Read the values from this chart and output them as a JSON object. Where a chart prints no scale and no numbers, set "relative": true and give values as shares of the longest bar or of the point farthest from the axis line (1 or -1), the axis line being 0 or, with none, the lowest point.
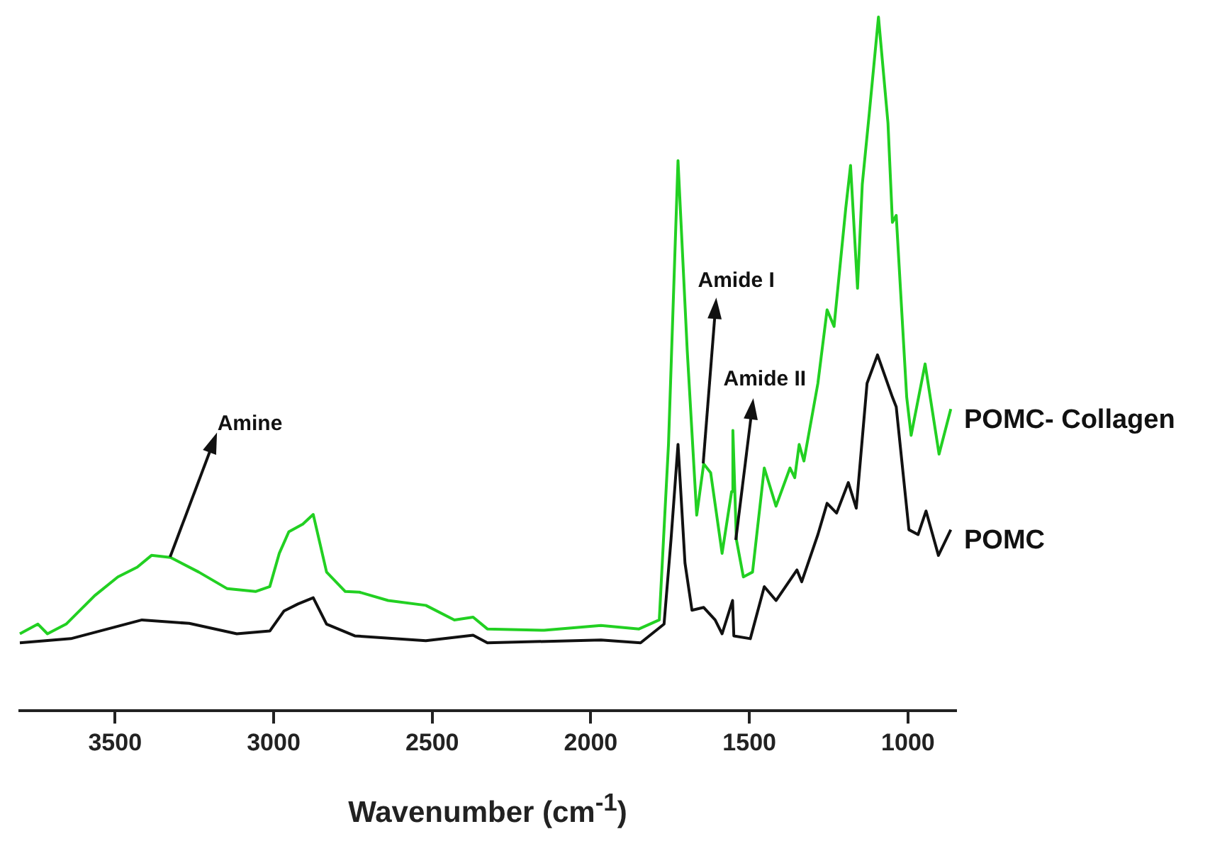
{
  "chart_data": {
    "type": "line",
    "relative": true,
    "xlabel": "Wavenumber (cm$^{-1}$)",
    "xlim": [
      3800,
      850
    ],
    "xticks": [
      3500,
      3000,
      2500,
      2000,
      1500,
      1000
    ],
    "grid": false,
    "legend": false,
    "marker": "none",
    "line_style": "solid",
    "annotations": [
      {
        "text": "Amine",
        "x": 3325,
        "y": 0.221
      },
      {
        "text": "Amide I",
        "x": 1644,
        "y": 0.356
      },
      {
        "text": "Amide II",
        "x": 1541,
        "y": 0.247
      }
    ],
    "series": [
      {
        "name": "POMC- Collagen",
        "color": "#22d022",
        "x": [
          3800,
          3743,
          3713,
          3654,
          3564,
          3491,
          3430,
          3385,
          3325,
          3236,
          3146,
          3057,
          3012,
          2982,
          2952,
          2908,
          2875,
          2833,
          2774,
          2729,
          2639,
          2520,
          2430,
          2371,
          2326,
          2147,
          1968,
          1848,
          1784,
          1755,
          1725,
          1696,
          1666,
          1644,
          1622,
          1586,
          1556,
          1552,
          1541,
          1519,
          1490,
          1453,
          1416,
          1372,
          1357,
          1343,
          1328,
          1284,
          1255,
          1233,
          1196,
          1181,
          1159,
          1144,
          1122,
          1093,
          1063,
          1049,
          1037,
          1004,
          990,
          946,
          902,
          865
        ],
        "values": [
          0.111,
          0.125,
          0.111,
          0.125,
          0.166,
          0.193,
          0.207,
          0.224,
          0.221,
          0.2,
          0.176,
          0.172,
          0.179,
          0.227,
          0.258,
          0.269,
          0.283,
          0.2,
          0.172,
          0.171,
          0.159,
          0.152,
          0.131,
          0.135,
          0.118,
          0.116,
          0.123,
          0.118,
          0.131,
          0.384,
          0.793,
          0.52,
          0.282,
          0.356,
          0.343,
          0.227,
          0.316,
          0.404,
          0.247,
          0.193,
          0.2,
          0.35,
          0.295,
          0.35,
          0.336,
          0.384,
          0.36,
          0.472,
          0.578,
          0.554,
          0.725,
          0.786,
          0.609,
          0.759,
          0.861,
          1,
          0.847,
          0.704,
          0.714,
          0.452,
          0.397,
          0.5,
          0.37,
          0.435
        ]
      },
      {
        "name": "POMC",
        "color": "#111111",
        "x": [
          3800,
          3639,
          3415,
          3266,
          3116,
          3012,
          2967,
          2923,
          2875,
          2833,
          2744,
          2520,
          2371,
          2326,
          1968,
          1843,
          1769,
          1747,
          1725,
          1703,
          1681,
          1644,
          1608,
          1586,
          1553,
          1549,
          1497,
          1453,
          1416,
          1350,
          1335,
          1284,
          1255,
          1225,
          1188,
          1163,
          1129,
          1096,
          1049,
          1037,
          997,
          968,
          943,
          904,
          865
        ],
        "values": [
          0.098,
          0.104,
          0.131,
          0.126,
          0.111,
          0.115,
          0.144,
          0.154,
          0.163,
          0.125,
          0.108,
          0.101,
          0.109,
          0.098,
          0.102,
          0.098,
          0.125,
          0.247,
          0.384,
          0.213,
          0.145,
          0.149,
          0.131,
          0.111,
          0.159,
          0.108,
          0.104,
          0.179,
          0.159,
          0.203,
          0.186,
          0.254,
          0.299,
          0.285,
          0.329,
          0.292,
          0.472,
          0.513,
          0.452,
          0.438,
          0.261,
          0.254,
          0.288,
          0.224,
          0.261
        ]
      }
    ]
  }
}
